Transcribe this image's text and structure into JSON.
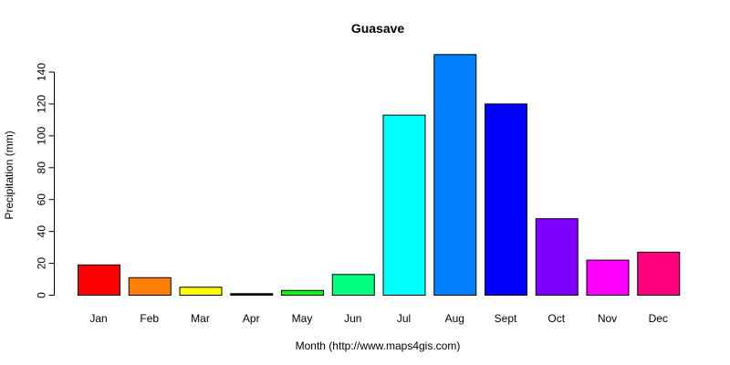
{
  "chart_data": {
    "type": "bar",
    "title": "Guasave",
    "xlabel": "Month (http://www.maps4gis.com)",
    "ylabel": "Precipitation (mm)",
    "ylim": [
      0,
      150
    ],
    "yticks": [
      0,
      20,
      40,
      60,
      80,
      100,
      120,
      140
    ],
    "categories": [
      "Jan",
      "Feb",
      "Mar",
      "Apr",
      "May",
      "Jun",
      "Jul",
      "Aug",
      "Sept",
      "Oct",
      "Nov",
      "Dec"
    ],
    "values": [
      19,
      11,
      5,
      1,
      3,
      13,
      113,
      151,
      120,
      48,
      22,
      27
    ],
    "colors": [
      "#ff0000",
      "#ff8000",
      "#ffff00",
      "#000000",
      "#00ff00",
      "#00ff80",
      "#00ffff",
      "#0080ff",
      "#0000ff",
      "#8000ff",
      "#ff00ff",
      "#ff0080"
    ],
    "grid": false,
    "legend": "none"
  }
}
